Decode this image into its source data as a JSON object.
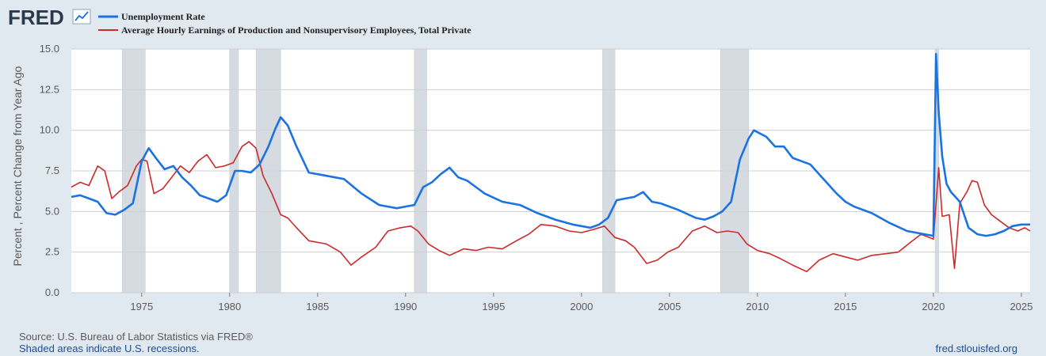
{
  "logo": {
    "text": "FRED"
  },
  "source": {
    "line1": "Source: U.S. Bureau of Labor Statistics via FRED®",
    "line2": "Shaded areas indicate U.S. recessions.",
    "site": "fred.stlouisfed.org"
  },
  "colors": {
    "unemployment": "#1a73e0",
    "earnings": "#cc2a2a",
    "recession": "#d5dbe1",
    "grid": "#d0d0d0"
  },
  "chart_data": {
    "type": "line",
    "title": "",
    "xlabel": "",
    "ylabel": "Percent , Percent Change from Year Ago",
    "xlim": [
      1971.0,
      2025.5
    ],
    "ylim": [
      0,
      15
    ],
    "y_ticks": [
      "0.0",
      "2.5",
      "5.0",
      "7.5",
      "10.0",
      "12.5",
      "15.0"
    ],
    "x_ticks": [
      "1975",
      "1980",
      "1985",
      "1990",
      "1995",
      "2000",
      "2005",
      "2010",
      "2015",
      "2020",
      "2025"
    ],
    "grid": true,
    "legend_position": "top-left",
    "recessions": [
      [
        1973.9,
        1975.2
      ],
      [
        1980.0,
        1980.5
      ],
      [
        1981.5,
        1982.9
      ],
      [
        1990.5,
        1991.2
      ],
      [
        2001.2,
        2001.9
      ],
      [
        2007.9,
        2009.5
      ],
      [
        2020.1,
        2020.3
      ]
    ],
    "series": [
      {
        "name": "Unemployment Rate",
        "color": "#1a73e0",
        "x": [
          1971.0,
          1971.5,
          1972.0,
          1972.5,
          1973.0,
          1973.5,
          1974.0,
          1974.5,
          1975.0,
          1975.4,
          1975.8,
          1976.3,
          1976.8,
          1977.3,
          1977.8,
          1978.3,
          1978.8,
          1979.3,
          1979.8,
          1980.3,
          1980.7,
          1981.2,
          1981.7,
          1982.2,
          1982.6,
          1982.9,
          1983.3,
          1983.8,
          1984.5,
          1985.5,
          1986.5,
          1987.5,
          1988.5,
          1989.5,
          1990.5,
          1991.0,
          1991.5,
          1992.0,
          1992.5,
          1993.0,
          1993.5,
          1994.0,
          1994.5,
          1995.5,
          1996.5,
          1997.5,
          1998.5,
          1999.5,
          2000.5,
          2001.0,
          2001.5,
          2002.0,
          2002.5,
          2003.0,
          2003.5,
          2004.0,
          2004.5,
          2005.5,
          2006.5,
          2007.0,
          2007.5,
          2008.0,
          2008.5,
          2009.0,
          2009.5,
          2009.8,
          2010.5,
          2011.0,
          2011.5,
          2012.0,
          2012.5,
          2013.0,
          2013.5,
          2014.0,
          2014.5,
          2015.0,
          2015.5,
          2016.5,
          2017.5,
          2018.5,
          2019.5,
          2020.0,
          2020.15,
          2020.3,
          2020.5,
          2020.75,
          2021.0,
          2021.5,
          2022.0,
          2022.5,
          2023.0,
          2023.5,
          2024.0,
          2024.5,
          2025.0,
          2025.5
        ],
        "values": [
          5.9,
          6.0,
          5.8,
          5.6,
          4.9,
          4.8,
          5.1,
          5.5,
          8.1,
          8.9,
          8.3,
          7.6,
          7.8,
          7.1,
          6.6,
          6.0,
          5.8,
          5.6,
          6.0,
          7.5,
          7.5,
          7.4,
          7.9,
          9.0,
          10.1,
          10.8,
          10.3,
          9.0,
          7.4,
          7.2,
          7.0,
          6.1,
          5.4,
          5.2,
          5.4,
          6.5,
          6.8,
          7.3,
          7.7,
          7.1,
          6.9,
          6.5,
          6.1,
          5.6,
          5.4,
          4.9,
          4.5,
          4.2,
          4.0,
          4.2,
          4.6,
          5.7,
          5.8,
          5.9,
          6.2,
          5.6,
          5.5,
          5.1,
          4.6,
          4.5,
          4.7,
          5.0,
          5.6,
          8.2,
          9.5,
          10.0,
          9.6,
          9.0,
          9.0,
          8.3,
          8.1,
          7.9,
          7.3,
          6.7,
          6.1,
          5.6,
          5.3,
          4.9,
          4.3,
          3.8,
          3.6,
          3.5,
          14.7,
          11.1,
          8.4,
          6.7,
          6.2,
          5.6,
          4.0,
          3.6,
          3.5,
          3.6,
          3.8,
          4.1,
          4.2,
          4.2
        ]
      },
      {
        "name": "Average Hourly Earnings of Production and Nonsupervisory Employees, Total Private",
        "color": "#cc2a2a",
        "x": [
          1971.0,
          1971.5,
          1972.0,
          1972.5,
          1972.9,
          1973.3,
          1973.7,
          1974.2,
          1974.7,
          1975.0,
          1975.3,
          1975.7,
          1976.2,
          1976.7,
          1977.2,
          1977.7,
          1978.2,
          1978.7,
          1979.2,
          1979.7,
          1980.2,
          1980.7,
          1981.1,
          1981.5,
          1981.9,
          1982.4,
          1982.9,
          1983.3,
          1983.8,
          1984.5,
          1985.5,
          1986.3,
          1986.9,
          1987.5,
          1988.3,
          1989.0,
          1989.7,
          1990.3,
          1990.7,
          1991.3,
          1991.9,
          1992.5,
          1993.3,
          1994.0,
          1994.7,
          1995.5,
          1996.3,
          1997.0,
          1997.7,
          1998.5,
          1999.3,
          2000.0,
          2000.7,
          2001.3,
          2001.9,
          2002.5,
          2003.0,
          2003.7,
          2004.3,
          2004.9,
          2005.5,
          2006.3,
          2007.0,
          2007.7,
          2008.3,
          2008.9,
          2009.4,
          2010.0,
          2010.7,
          2011.3,
          2012.0,
          2012.8,
          2013.5,
          2014.3,
          2015.0,
          2015.7,
          2016.5,
          2017.3,
          2018.0,
          2018.7,
          2019.3,
          2020.0,
          2020.3,
          2020.5,
          2020.9,
          2021.2,
          2021.5,
          2021.9,
          2022.2,
          2022.5,
          2022.9,
          2023.3,
          2023.8,
          2024.3,
          2024.8,
          2025.2,
          2025.5
        ],
        "values": [
          6.5,
          6.8,
          6.6,
          7.8,
          7.5,
          5.8,
          6.2,
          6.6,
          7.8,
          8.2,
          8.1,
          6.1,
          6.4,
          7.1,
          7.8,
          7.4,
          8.1,
          8.5,
          7.7,
          7.8,
          8.0,
          9.0,
          9.3,
          8.9,
          7.2,
          6.1,
          4.8,
          4.6,
          4.0,
          3.2,
          3.0,
          2.5,
          1.7,
          2.2,
          2.8,
          3.8,
          4.0,
          4.1,
          3.8,
          3.0,
          2.6,
          2.3,
          2.7,
          2.6,
          2.8,
          2.7,
          3.2,
          3.6,
          4.2,
          4.1,
          3.8,
          3.7,
          3.9,
          4.1,
          3.4,
          3.2,
          2.8,
          1.8,
          2.0,
          2.5,
          2.8,
          3.8,
          4.1,
          3.7,
          3.8,
          3.7,
          3.0,
          2.6,
          2.4,
          2.1,
          1.7,
          1.3,
          2.0,
          2.4,
          2.2,
          2.0,
          2.3,
          2.4,
          2.5,
          3.1,
          3.6,
          3.3,
          7.7,
          4.7,
          4.8,
          1.5,
          5.5,
          6.2,
          6.9,
          6.8,
          5.4,
          4.8,
          4.4,
          4.0,
          3.8,
          4.0,
          3.8
        ]
      }
    ]
  }
}
